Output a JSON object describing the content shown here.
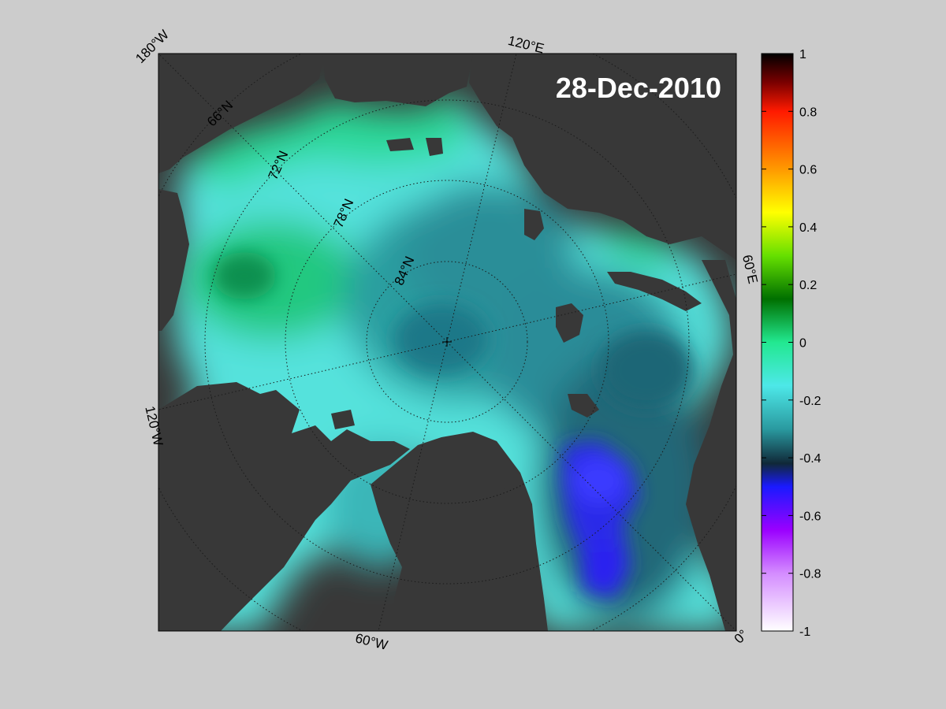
{
  "map": {
    "date_label": "28-Dec-2010",
    "colors": {
      "page_background": "#cccccc",
      "land": "#383838",
      "land_mask": "#808080",
      "frame": "#000000",
      "grid": "#1a1a1a"
    },
    "longitude_labels": [
      "180°W",
      "120°E",
      "60°E",
      "0°",
      "60°W",
      "120°W"
    ],
    "latitude_labels": [
      "66°N",
      "72°N",
      "78°N",
      "84°N"
    ]
  },
  "colorbar": {
    "min": -1,
    "max": 1,
    "tick_labels": [
      "1",
      "0.8",
      "0.6",
      "0.4",
      "0.2",
      "0",
      "-0.2",
      "-0.4",
      "-0.6",
      "-0.8",
      "-1"
    ],
    "color_stops": [
      {
        "value": 1.0,
        "color": "#000000"
      },
      {
        "value": 0.9,
        "color": "#7a0000"
      },
      {
        "value": 0.8,
        "color": "#ff1a00"
      },
      {
        "value": 0.6,
        "color": "#ff9900"
      },
      {
        "value": 0.45,
        "color": "#ffff00"
      },
      {
        "value": 0.3,
        "color": "#66e000"
      },
      {
        "value": 0.15,
        "color": "#007000"
      },
      {
        "value": 0.0,
        "color": "#22e890"
      },
      {
        "value": -0.15,
        "color": "#4de8e8"
      },
      {
        "value": -0.3,
        "color": "#2a9aa0"
      },
      {
        "value": -0.42,
        "color": "#102838"
      },
      {
        "value": -0.5,
        "color": "#1a1aff"
      },
      {
        "value": -0.65,
        "color": "#9a00ff"
      },
      {
        "value": -0.8,
        "color": "#d48cff"
      },
      {
        "value": -1.0,
        "color": "#ffffff"
      }
    ]
  }
}
